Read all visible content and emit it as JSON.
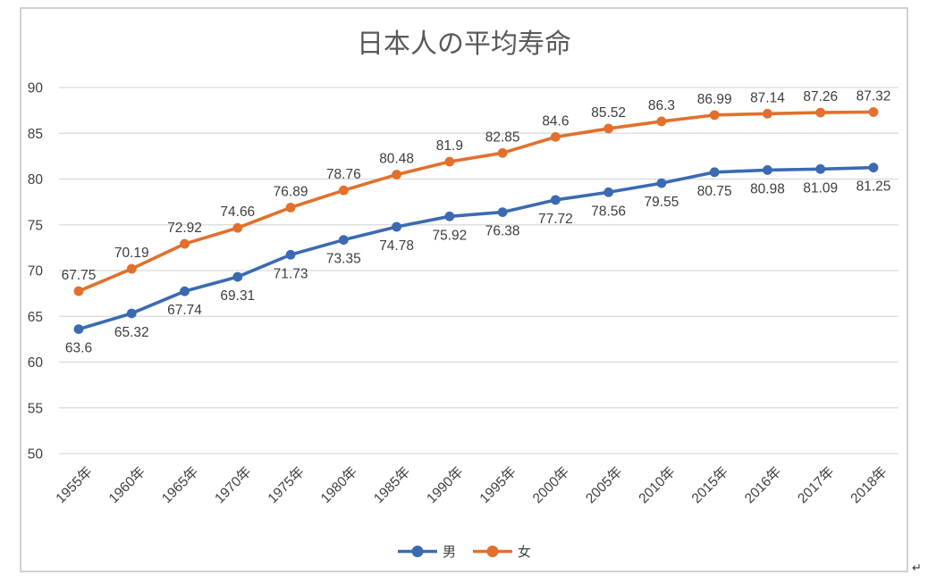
{
  "chart_data": {
    "type": "line",
    "title": "日本人の平均寿命",
    "categories": [
      "1955年",
      "1960年",
      "1965年",
      "1970年",
      "1975年",
      "1980年",
      "1985年",
      "1990年",
      "1995年",
      "2000年",
      "2005年",
      "2010年",
      "2015年",
      "2016年",
      "2017年",
      "2018年"
    ],
    "series": [
      {
        "name": "男",
        "color": "#3b6ab2",
        "label_position": "below",
        "values": [
          63.6,
          65.32,
          67.74,
          69.31,
          71.73,
          73.35,
          74.78,
          75.92,
          76.38,
          77.72,
          78.56,
          79.55,
          80.75,
          80.98,
          81.09,
          81.25
        ]
      },
      {
        "name": "女",
        "color": "#e2702c",
        "label_position": "above",
        "values": [
          67.75,
          70.19,
          72.92,
          74.66,
          76.89,
          78.76,
          80.48,
          81.9,
          82.85,
          84.6,
          85.52,
          86.3,
          86.99,
          87.14,
          87.26,
          87.32
        ]
      }
    ],
    "ylim": [
      50,
      90
    ],
    "ytick_step": 5,
    "yticks": [
      "50",
      "55",
      "60",
      "65",
      "70",
      "75",
      "80",
      "85",
      "90"
    ],
    "grid": true,
    "gridline_color": "#d9d9d9",
    "legend_position": "bottom",
    "xlabel": "",
    "ylabel": ""
  },
  "decorations": {
    "paragraph_mark": "↵"
  }
}
